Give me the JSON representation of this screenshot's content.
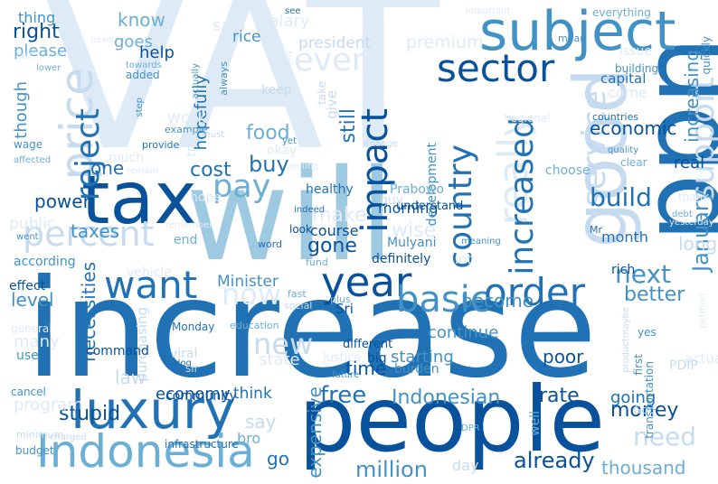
{
  "palette": {
    "background": "#ffffff",
    "scheme": "blues"
  },
  "words": [
    {
      "text": "VAT",
      "color": "#deebf7"
    },
    {
      "text": "increase",
      "color": "#2171b5"
    },
    {
      "text": "will",
      "color": "#9ecae1"
    },
    {
      "text": "people",
      "color": "#08519c"
    },
    {
      "text": "ppn",
      "color": "#2171b5"
    },
    {
      "text": "tax",
      "color": "#08519c"
    },
    {
      "text": "good",
      "color": "#c6dbef"
    },
    {
      "text": "luxury",
      "color": "#2171b5"
    },
    {
      "text": "subject",
      "color": "#4292c6"
    },
    {
      "text": "Indonesia",
      "color": "#6baed6"
    },
    {
      "text": "price",
      "color": "#c6dbef"
    },
    {
      "text": "percent",
      "color": "#c6dbef"
    },
    {
      "text": "sector",
      "color": "#08519c"
    },
    {
      "text": "want",
      "color": "#2171b5"
    },
    {
      "text": "year",
      "color": "#08519c"
    },
    {
      "text": "basic",
      "color": "#4292c6"
    },
    {
      "text": "order",
      "color": "#2171b5"
    },
    {
      "text": "even",
      "color": "#deebf7"
    },
    {
      "text": "really",
      "color": "#deebf7"
    },
    {
      "text": "impact",
      "color": "#08519c"
    },
    {
      "text": "country",
      "color": "#2171b5"
    },
    {
      "text": "increased",
      "color": "#2171b5"
    },
    {
      "text": "service",
      "color": "#c6dbef"
    },
    {
      "text": "support",
      "color": "#c6dbef"
    },
    {
      "text": "reject",
      "color": "#2171b5"
    },
    {
      "text": "pay",
      "color": "#6baed6"
    },
    {
      "text": "cost",
      "color": "#2171b5"
    },
    {
      "text": "buy",
      "color": "#2171b5"
    },
    {
      "text": "now",
      "color": "#deebf7"
    },
    {
      "text": "new",
      "color": "#c6dbef"
    },
    {
      "text": "next",
      "color": "#4292c6"
    },
    {
      "text": "build",
      "color": "#2171b5"
    },
    {
      "text": "need",
      "color": "#c6dbef"
    },
    {
      "text": "free",
      "color": "#2171b5"
    },
    {
      "text": "Indonesian",
      "color": "#4292c6"
    },
    {
      "text": "rate",
      "color": "#08519c"
    },
    {
      "text": "money",
      "color": "#08519c"
    },
    {
      "text": "million",
      "color": "#4292c6"
    },
    {
      "text": "already",
      "color": "#08519c"
    },
    {
      "text": "thousand",
      "color": "#6baed6"
    },
    {
      "text": "stupid",
      "color": "#08519c"
    },
    {
      "text": "economy",
      "color": "#08519c"
    },
    {
      "text": "food",
      "color": "#6baed6"
    },
    {
      "text": "gone",
      "color": "#08519c"
    },
    {
      "text": "still",
      "color": "#2171b5"
    },
    {
      "text": "right",
      "color": "#08519c"
    },
    {
      "text": "make",
      "color": "#deebf7"
    },
    {
      "text": "wise",
      "color": "#deebf7"
    },
    {
      "text": "power",
      "color": "#08519c"
    },
    {
      "text": "taxes",
      "color": "#4292c6"
    },
    {
      "text": "January",
      "color": "#4292c6"
    },
    {
      "text": "increasing",
      "color": "#4292c6"
    },
    {
      "text": "economic",
      "color": "#08519c"
    },
    {
      "text": "better",
      "color": "#4292c6"
    },
    {
      "text": "level",
      "color": "#4292c6"
    },
    {
      "text": "become",
      "color": "#4292c6"
    },
    {
      "text": "time",
      "color": "#08519c"
    },
    {
      "text": "go",
      "color": "#2171b5"
    },
    {
      "text": "say",
      "color": "#c6dbef"
    },
    {
      "text": "think",
      "color": "#2171b5"
    },
    {
      "text": "law",
      "color": "#c6dbef"
    },
    {
      "text": "one",
      "color": "#2171b5"
    },
    {
      "text": "poor",
      "color": "#08519c"
    },
    {
      "text": "going",
      "color": "#2171b5"
    },
    {
      "text": "starting",
      "color": "#4292c6"
    },
    {
      "text": "continue",
      "color": "#4292c6"
    },
    {
      "text": "Minister",
      "color": "#4292c6"
    },
    {
      "text": "morning",
      "color": "#08519c"
    },
    {
      "text": "course",
      "color": "#08519c"
    },
    {
      "text": "month",
      "color": "#2171b5"
    },
    {
      "text": "long",
      "color": "#c6dbef"
    },
    {
      "text": "real",
      "color": "#08519c"
    },
    {
      "text": "capital",
      "color": "#2171b5"
    },
    {
      "text": "expensive",
      "color": "#4292c6"
    },
    {
      "text": "necessities",
      "color": "#2171b5"
    },
    {
      "text": "know",
      "color": "#6baed6"
    },
    {
      "text": "goes",
      "color": "#6baed6"
    },
    {
      "text": "help",
      "color": "#08519c"
    },
    {
      "text": "president",
      "color": "#c6dbef"
    },
    {
      "text": "premium",
      "color": "#deebf7"
    },
    {
      "text": "salary",
      "color": "#deebf7"
    },
    {
      "text": "said",
      "color": "#deebf7"
    },
    {
      "text": "rice",
      "color": "#4292c6"
    },
    {
      "text": "please",
      "color": "#6baed6"
    },
    {
      "text": "thing",
      "color": "#4292c6"
    },
    {
      "text": "though",
      "color": "#4292c6"
    },
    {
      "text": "hopefully",
      "color": "#2171b5"
    },
    {
      "text": "actually",
      "color": "#4292c6"
    },
    {
      "text": "keep",
      "color": "#c6dbef"
    },
    {
      "text": "give",
      "color": "#c6dbef"
    },
    {
      "text": "take",
      "color": "#c6dbef"
    },
    {
      "text": "development",
      "color": "#4292c6"
    },
    {
      "text": "Prabowo",
      "color": "#6baed6"
    },
    {
      "text": "healthy",
      "color": "#2171b5"
    },
    {
      "text": "guy",
      "color": "#c6dbef"
    },
    {
      "text": "understand",
      "color": "#08519c"
    },
    {
      "text": "Mulyani",
      "color": "#4292c6"
    },
    {
      "text": "definitely",
      "color": "#08519c"
    },
    {
      "text": "lot",
      "color": "#deebf7"
    },
    {
      "text": "Sri",
      "color": "#08519c"
    },
    {
      "text": "different",
      "color": "#08519c"
    },
    {
      "text": "justice",
      "color": "#deebf7"
    },
    {
      "text": "big",
      "color": "#08519c"
    },
    {
      "text": "burden",
      "color": "#4292c6"
    },
    {
      "text": "well",
      "color": "#6baed6"
    },
    {
      "text": "DPR",
      "color": "#6baed6"
    },
    {
      "text": "day",
      "color": "#c6dbef"
    },
    {
      "text": "community",
      "color": "#08519c"
    },
    {
      "text": "infrastructure",
      "color": "#2171b5"
    },
    {
      "text": "bro",
      "color": "#6baed6"
    },
    {
      "text": "viral",
      "color": "#c6dbef"
    },
    {
      "text": "effect",
      "color": "#08519c"
    },
    {
      "text": "vehicle",
      "color": "#deebf7"
    },
    {
      "text": "purchasing",
      "color": "#c6dbef"
    },
    {
      "text": "command",
      "color": "#08519c"
    },
    {
      "text": "work",
      "color": "#deebf7"
    },
    {
      "text": "example",
      "color": "#4292c6"
    },
    {
      "text": "true",
      "color": "#deebf7"
    },
    {
      "text": "hope",
      "color": "#deebf7"
    },
    {
      "text": "public",
      "color": "#deebf7"
    },
    {
      "text": "went",
      "color": "#4292c6"
    },
    {
      "text": "according",
      "color": "#4292c6"
    },
    {
      "text": "end",
      "color": "#6baed6"
    },
    {
      "text": "remember",
      "color": "#deebf7"
    },
    {
      "text": "look",
      "color": "#08519c"
    },
    {
      "text": "word",
      "color": "#2171b5"
    },
    {
      "text": "fund",
      "color": "#6baed6"
    },
    {
      "text": "indeed",
      "color": "#2171b5"
    },
    {
      "text": "fast",
      "color": "#6baed6"
    },
    {
      "text": "social",
      "color": "#c6dbef"
    },
    {
      "text": "plus",
      "color": "#6baed6"
    },
    {
      "text": "education",
      "color": "#6baed6"
    },
    {
      "text": "Monday",
      "color": "#2171b5"
    },
    {
      "text": "meaning",
      "color": "#4292c6"
    },
    {
      "text": "rich",
      "color": "#08519c"
    },
    {
      "text": "Mr",
      "color": "#2171b5"
    },
    {
      "text": "quality",
      "color": "#4292c6"
    },
    {
      "text": "clear",
      "color": "#6baed6"
    },
    {
      "text": "choose",
      "color": "#6baed6"
    },
    {
      "text": "regional",
      "color": "#deebf7"
    },
    {
      "text": "countries",
      "color": "#2171b5"
    },
    {
      "text": "come",
      "color": "#deebf7"
    },
    {
      "text": "building",
      "color": "#4292c6"
    },
    {
      "text": "issue",
      "color": "#deebf7"
    },
    {
      "text": "mean",
      "color": "#4292c6"
    },
    {
      "text": "important",
      "color": "#deebf7"
    },
    {
      "text": "everything",
      "color": "#6baed6"
    },
    {
      "text": "quickly",
      "color": "#4292c6"
    },
    {
      "text": "thank",
      "color": "#deebf7"
    },
    {
      "text": "debt",
      "color": "#6baed6"
    },
    {
      "text": "yesterday",
      "color": "#deebf7"
    },
    {
      "text": "petition",
      "color": "#deebf7"
    },
    {
      "text": "productmaybe",
      "color": "#c6dbef"
    },
    {
      "text": "yes",
      "color": "#4292c6"
    },
    {
      "text": "first",
      "color": "#4292c6"
    },
    {
      "text": "transportation",
      "color": "#4292c6"
    },
    {
      "text": "actually",
      "color": "#deebf7"
    },
    {
      "text": "PDIP",
      "color": "#c6dbef"
    },
    {
      "text": "God",
      "color": "#c6dbef"
    },
    {
      "text": "state",
      "color": "#deebf7"
    },
    {
      "text": "sir",
      "color": "#c6dbef"
    },
    {
      "text": "future",
      "color": "#4292c6"
    },
    {
      "text": "dog",
      "color": "#2171b5"
    },
    {
      "text": "many",
      "color": "#deebf7"
    },
    {
      "text": "use",
      "color": "#4292c6"
    },
    {
      "text": "general",
      "color": "#deebf7"
    },
    {
      "text": "cancel",
      "color": "#4292c6"
    },
    {
      "text": "program",
      "color": "#deebf7"
    },
    {
      "text": "minimum",
      "color": "#c6dbef"
    },
    {
      "text": "budget",
      "color": "#4292c6"
    },
    {
      "text": "charged",
      "color": "#c6dbef"
    },
    {
      "text": "wage",
      "color": "#4292c6"
    },
    {
      "text": "affected",
      "color": "#6baed6"
    },
    {
      "text": "provide",
      "color": "#2171b5"
    },
    {
      "text": "step",
      "color": "#4292c6"
    },
    {
      "text": "must",
      "color": "#c6dbef"
    },
    {
      "text": "much",
      "color": "#deebf7"
    },
    {
      "text": "remain",
      "color": "#deebf7"
    },
    {
      "text": "selling",
      "color": "#deebf7"
    },
    {
      "text": "okay",
      "color": "#deebf7"
    },
    {
      "text": "yet",
      "color": "#4292c6"
    },
    {
      "text": "change",
      "color": "#c6dbef"
    },
    {
      "text": "always",
      "color": "#4292c6"
    },
    {
      "text": "towards",
      "color": "#6baed6"
    },
    {
      "text": "added",
      "color": "#4292c6"
    },
    {
      "text": "lower",
      "color": "#6baed6"
    },
    {
      "text": "last",
      "color": "#deebf7"
    },
    {
      "text": "see",
      "color": "#2171b5"
    },
    {
      "text": "Spotify",
      "color": "#deebf7"
    },
    {
      "text": "news",
      "color": "#deebf7"
    }
  ]
}
